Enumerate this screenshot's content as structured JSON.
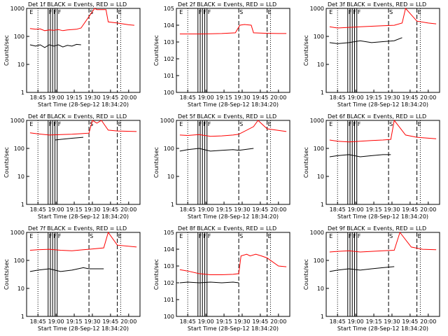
{
  "chart_data": [
    {
      "id": "1",
      "title": "Det 1f  BLACK = Events, RED = LLD",
      "type": "line",
      "ylog": true,
      "ylim": [
        1,
        1000
      ],
      "ylabel": "Counts/sec",
      "xlabel": "Start Time (28-Sep-12 18:34:20)",
      "xticks": [
        "18:45",
        "19:00",
        "19:15",
        "19:30",
        "19:45",
        "20:00"
      ],
      "markers": [
        "E",
        "F",
        "F",
        "F",
        "S",
        "E"
      ],
      "series": [
        {
          "name": "Events",
          "color": "#000000",
          "values": [
            [
              0.03,
              50
            ],
            [
              0.08,
              45
            ],
            [
              0.12,
              50
            ],
            [
              0.16,
              40
            ],
            [
              0.2,
              50
            ],
            [
              0.24,
              45
            ],
            [
              0.28,
              50
            ],
            [
              0.32,
              42
            ],
            [
              0.36,
              48
            ],
            [
              0.4,
              45
            ],
            [
              0.44,
              52
            ],
            [
              0.48,
              50
            ]
          ]
        },
        {
          "name": "LLD",
          "color": "#ff0000",
          "values": [
            [
              0.03,
              190
            ],
            [
              0.08,
              180
            ],
            [
              0.12,
              185
            ],
            [
              0.16,
              160
            ],
            [
              0.2,
              170
            ],
            [
              0.24,
              165
            ],
            [
              0.28,
              175
            ],
            [
              0.32,
              160
            ],
            [
              0.36,
              170
            ],
            [
              0.4,
              175
            ],
            [
              0.44,
              180
            ],
            [
              0.48,
              200
            ],
            [
              0.6,
              1000
            ],
            [
              0.62,
              900
            ],
            [
              0.7,
              900
            ],
            [
              0.72,
              330
            ],
            [
              0.8,
              300
            ],
            [
              0.9,
              260
            ],
            [
              0.95,
              250
            ]
          ]
        }
      ]
    },
    {
      "id": "2",
      "title": "Det 2f  BLACK = Events, RED = LLD",
      "type": "line",
      "ylog": true,
      "ylim": [
        1,
        100000
      ],
      "ylabel": "Counts/sec",
      "xlabel": "Start Time (28-Sep-12 18:34:20)",
      "xticks": [
        "18:45",
        "19:00",
        "19:15",
        "19:30",
        "19:45",
        "20:00"
      ],
      "markers": [
        "E",
        "F",
        "F",
        "F",
        "S",
        "E"
      ],
      "series": [
        {
          "name": "LLD",
          "color": "#ff0000",
          "values": [
            [
              0.03,
              3000
            ],
            [
              0.1,
              3000
            ],
            [
              0.2,
              3000
            ],
            [
              0.3,
              3100
            ],
            [
              0.4,
              3200
            ],
            [
              0.52,
              3500
            ],
            [
              0.56,
              10000
            ],
            [
              0.6,
              11000
            ],
            [
              0.66,
              10000
            ],
            [
              0.68,
              3500
            ],
            [
              0.8,
              3300
            ],
            [
              0.9,
              3200
            ],
            [
              0.97,
              3200
            ]
          ]
        }
      ]
    },
    {
      "id": "3",
      "title": "Det 3f  BLACK = Events, RED = LLD",
      "type": "line",
      "ylog": true,
      "ylim": [
        1,
        1000
      ],
      "ylabel": "Counts/sec",
      "xlabel": "Start Time (28-Sep-12 18:34:20)",
      "xticks": [
        "18:45",
        "19:00",
        "19:15",
        "19:30",
        "19:45",
        "20:00"
      ],
      "markers": [
        "E",
        "F",
        "F",
        "F",
        "S",
        "E"
      ],
      "series": [
        {
          "name": "Events",
          "color": "#000000",
          "values": [
            [
              0.03,
              60
            ],
            [
              0.1,
              55
            ],
            [
              0.2,
              60
            ],
            [
              0.3,
              70
            ],
            [
              0.4,
              60
            ],
            [
              0.5,
              65
            ],
            [
              0.6,
              70
            ],
            [
              0.67,
              90
            ]
          ]
        },
        {
          "name": "LLD",
          "color": "#ff0000",
          "values": [
            [
              0.03,
              220
            ],
            [
              0.1,
              200
            ],
            [
              0.2,
              210
            ],
            [
              0.3,
              220
            ],
            [
              0.4,
              230
            ],
            [
              0.5,
              240
            ],
            [
              0.6,
              250
            ],
            [
              0.67,
              300
            ],
            [
              0.7,
              1000
            ],
            [
              0.8,
              350
            ],
            [
              0.9,
              300
            ],
            [
              0.97,
              280
            ]
          ]
        }
      ]
    },
    {
      "id": "4",
      "title": "Det 4f  BLACK = Events, RED = LLD",
      "type": "line",
      "ylog": true,
      "ylim": [
        1,
        1000
      ],
      "ylabel": "Counts/sec",
      "xlabel": "Start Time (28-Sep-12 18:34:20)",
      "xticks": [
        "18:45",
        "19:00",
        "19:15",
        "19:30",
        "19:45",
        "20:00"
      ],
      "markers": [
        "E",
        "F",
        "F",
        "F",
        "S",
        "E"
      ],
      "series": [
        {
          "name": "Events",
          "color": "#000000",
          "values": [
            [
              0.25,
              200
            ],
            [
              0.3,
              210
            ],
            [
              0.4,
              230
            ],
            [
              0.5,
              250
            ]
          ]
        },
        {
          "name": "LLD",
          "color": "#ff0000",
          "values": [
            [
              0.03,
              360
            ],
            [
              0.1,
              330
            ],
            [
              0.2,
              300
            ],
            [
              0.3,
              310
            ],
            [
              0.4,
              320
            ],
            [
              0.5,
              340
            ],
            [
              0.55,
              350
            ],
            [
              0.58,
              1000
            ],
            [
              0.62,
              800
            ],
            [
              0.66,
              1000
            ],
            [
              0.72,
              450
            ],
            [
              0.8,
              420
            ],
            [
              0.97,
              400
            ]
          ]
        }
      ]
    },
    {
      "id": "5",
      "title": "Det 5f  BLACK = Events, RED = LLD",
      "type": "line",
      "ylog": true,
      "ylim": [
        1,
        1000
      ],
      "ylabel": "Counts/sec",
      "xlabel": "Start Time (28-Sep-12 18:34:20)",
      "xticks": [
        "18:45",
        "19:00",
        "19:15",
        "19:30",
        "19:45",
        "20:00"
      ],
      "markers": [
        "E",
        "F",
        "F",
        "F",
        "S",
        "E"
      ],
      "series": [
        {
          "name": "Events",
          "color": "#000000",
          "values": [
            [
              0.03,
              80
            ],
            [
              0.1,
              90
            ],
            [
              0.2,
              100
            ],
            [
              0.3,
              80
            ],
            [
              0.4,
              85
            ],
            [
              0.5,
              90
            ],
            [
              0.55,
              85
            ],
            [
              0.68,
              100
            ]
          ]
        },
        {
          "name": "LLD",
          "color": "#ff0000",
          "values": [
            [
              0.03,
              300
            ],
            [
              0.1,
              290
            ],
            [
              0.2,
              310
            ],
            [
              0.3,
              270
            ],
            [
              0.4,
              280
            ],
            [
              0.5,
              300
            ],
            [
              0.55,
              320
            ],
            [
              0.68,
              600
            ],
            [
              0.72,
              1000
            ],
            [
              0.8,
              500
            ],
            [
              0.97,
              400
            ]
          ]
        }
      ]
    },
    {
      "id": "6",
      "title": "Det 6f  BLACK = Events, RED = LLD",
      "type": "line",
      "ylog": true,
      "ylim": [
        1,
        1000
      ],
      "ylabel": "Counts/sec",
      "xlabel": "Start Time (28-Sep-12 18:34:20)",
      "xticks": [
        "18:45",
        "19:00",
        "19:15",
        "19:30",
        "19:45",
        "20:00"
      ],
      "markers": [
        "E",
        "F",
        "F",
        "F",
        "S",
        "E"
      ],
      "series": [
        {
          "name": "Events",
          "color": "#000000",
          "values": [
            [
              0.03,
              50
            ],
            [
              0.1,
              55
            ],
            [
              0.2,
              60
            ],
            [
              0.3,
              50
            ],
            [
              0.4,
              55
            ],
            [
              0.5,
              60
            ],
            [
              0.57,
              60
            ]
          ]
        },
        {
          "name": "LLD",
          "color": "#ff0000",
          "values": [
            [
              0.03,
              200
            ],
            [
              0.1,
              180
            ],
            [
              0.2,
              170
            ],
            [
              0.3,
              180
            ],
            [
              0.4,
              190
            ],
            [
              0.5,
              200
            ],
            [
              0.57,
              210
            ],
            [
              0.6,
              1000
            ],
            [
              0.7,
              300
            ],
            [
              0.8,
              250
            ],
            [
              0.97,
              220
            ]
          ]
        }
      ]
    },
    {
      "id": "7",
      "title": "Det 7f  BLACK = Events, RED = LLD",
      "type": "line",
      "ylog": true,
      "ylim": [
        1,
        1000
      ],
      "ylabel": "Counts/sec",
      "xlabel": "Start Time (28-Sep-12 18:34:20)",
      "xticks": [
        "18:45",
        "19:00",
        "19:15",
        "19:30",
        "19:45",
        "20:00"
      ],
      "markers": [
        "E",
        "F",
        "F",
        "F",
        "S",
        "E"
      ],
      "series": [
        {
          "name": "Events",
          "color": "#000000",
          "values": [
            [
              0.03,
              40
            ],
            [
              0.1,
              45
            ],
            [
              0.2,
              50
            ],
            [
              0.3,
              40
            ],
            [
              0.4,
              45
            ],
            [
              0.5,
              55
            ],
            [
              0.55,
              50
            ],
            [
              0.68,
              50
            ]
          ]
        },
        {
          "name": "LLD",
          "color": "#ff0000",
          "values": [
            [
              0.03,
              230
            ],
            [
              0.1,
              240
            ],
            [
              0.2,
              250
            ],
            [
              0.3,
              230
            ],
            [
              0.4,
              220
            ],
            [
              0.5,
              240
            ],
            [
              0.55,
              250
            ],
            [
              0.68,
              280
            ],
            [
              0.72,
              1000
            ],
            [
              0.8,
              350
            ],
            [
              0.97,
              300
            ]
          ]
        }
      ]
    },
    {
      "id": "8",
      "title": "Det 8f  BLACK = Events, RED = LLD",
      "type": "line",
      "ylog": true,
      "ylim": [
        1,
        100000
      ],
      "ylabel": "Counts/sec",
      "xlabel": "Start Time (28-Sep-12 18:34:20)",
      "xticks": [
        "18:45",
        "19:00",
        "19:15",
        "19:30",
        "19:45",
        "20:00"
      ],
      "markers": [
        "E",
        "F",
        "F",
        "F",
        "S",
        "E"
      ],
      "series": [
        {
          "name": "Events",
          "color": "#000000",
          "values": [
            [
              0.03,
              100
            ],
            [
              0.1,
              110
            ],
            [
              0.2,
              100
            ],
            [
              0.3,
              110
            ],
            [
              0.4,
              100
            ],
            [
              0.5,
              110
            ],
            [
              0.55,
              100
            ]
          ]
        },
        {
          "name": "LLD",
          "color": "#ff0000",
          "values": [
            [
              0.03,
              600
            ],
            [
              0.1,
              500
            ],
            [
              0.2,
              350
            ],
            [
              0.3,
              300
            ],
            [
              0.4,
              300
            ],
            [
              0.5,
              320
            ],
            [
              0.55,
              350
            ],
            [
              0.57,
              4000
            ],
            [
              0.62,
              5000
            ],
            [
              0.65,
              4000
            ],
            [
              0.7,
              5000
            ],
            [
              0.75,
              4000
            ],
            [
              0.8,
              3000
            ],
            [
              0.9,
              1000
            ],
            [
              0.97,
              900
            ]
          ]
        }
      ]
    },
    {
      "id": "9",
      "title": "Det 9f  BLACK = Events, RED = LLD",
      "type": "line",
      "ylog": true,
      "ylim": [
        1,
        1000
      ],
      "ylabel": "Counts/sec",
      "xlabel": "Start Time (28-Sep-12 18:34:20)",
      "xticks": [
        "18:45",
        "19:00",
        "19:15",
        "19:30",
        "19:45",
        "20:00"
      ],
      "markers": [
        "E",
        "F",
        "F",
        "F",
        "S",
        "E"
      ],
      "series": [
        {
          "name": "Events",
          "color": "#000000",
          "values": [
            [
              0.03,
              40
            ],
            [
              0.1,
              45
            ],
            [
              0.2,
              50
            ],
            [
              0.3,
              45
            ],
            [
              0.4,
              50
            ],
            [
              0.5,
              55
            ],
            [
              0.6,
              60
            ]
          ]
        },
        {
          "name": "LLD",
          "color": "#ff0000",
          "values": [
            [
              0.03,
              200
            ],
            [
              0.1,
              210
            ],
            [
              0.2,
              220
            ],
            [
              0.3,
              200
            ],
            [
              0.4,
              210
            ],
            [
              0.5,
              220
            ],
            [
              0.6,
              230
            ],
            [
              0.65,
              1000
            ],
            [
              0.75,
              300
            ],
            [
              0.85,
              250
            ],
            [
              0.97,
              240
            ]
          ]
        }
      ]
    }
  ]
}
